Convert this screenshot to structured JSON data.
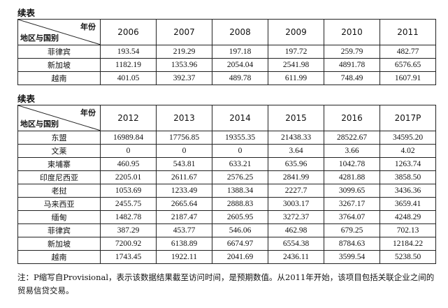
{
  "table1": {
    "caption": "续表",
    "corner_top": "年份",
    "corner_bottom": "地区与国别",
    "years": [
      "2006",
      "2007",
      "2008",
      "2009",
      "2010",
      "2011"
    ],
    "rows": [
      {
        "label": "菲律宾",
        "values": [
          "193.54",
          "219.29",
          "197.18",
          "197.72",
          "259.79",
          "482.77"
        ]
      },
      {
        "label": "新加坡",
        "values": [
          "1182.19",
          "1353.96",
          "2054.04",
          "2541.98",
          "4891.78",
          "6576.65"
        ]
      },
      {
        "label": "越南",
        "values": [
          "401.05",
          "392.37",
          "489.78",
          "611.99",
          "748.49",
          "1607.91"
        ]
      }
    ]
  },
  "table2": {
    "caption": "续表",
    "corner_top": "年份",
    "corner_bottom": "地区与国别",
    "years": [
      "2012",
      "2013",
      "2014",
      "2015",
      "2016",
      "2017P"
    ],
    "rows": [
      {
        "label": "东盟",
        "values": [
          "16989.84",
          "17756.85",
          "19355.35",
          "21438.33",
          "28522.67",
          "34595.20"
        ]
      },
      {
        "label": "文莱",
        "values": [
          "0",
          "0",
          "0",
          "3.64",
          "3.66",
          "4.02"
        ]
      },
      {
        "label": "柬埔寨",
        "values": [
          "460.95",
          "543.81",
          "633.21",
          "635.96",
          "1042.78",
          "1263.74"
        ]
      },
      {
        "label": "印度尼西亚",
        "values": [
          "2205.01",
          "2611.67",
          "2576.25",
          "2841.99",
          "4281.88",
          "3858.50"
        ]
      },
      {
        "label": "老挝",
        "values": [
          "1053.69",
          "1233.49",
          "1388.34",
          "2227.7",
          "3099.65",
          "3436.36"
        ]
      },
      {
        "label": "马来西亚",
        "values": [
          "2455.75",
          "2665.64",
          "2888.83",
          "3003.17",
          "3267.17",
          "3659.41"
        ]
      },
      {
        "label": "缅甸",
        "values": [
          "1482.78",
          "2187.47",
          "2605.95",
          "3272.37",
          "3764.07",
          "4248.29"
        ]
      },
      {
        "label": "菲律宾",
        "values": [
          "387.29",
          "453.77",
          "546.06",
          "462.98",
          "679.25",
          "702.13"
        ]
      },
      {
        "label": "新加坡",
        "values": [
          "7200.92",
          "6138.89",
          "6674.97",
          "6554.38",
          "8784.63",
          "12184.22"
        ]
      },
      {
        "label": "越南",
        "values": [
          "1743.45",
          "1922.11",
          "2041.69",
          "2436.11",
          "3599.54",
          "5238.50"
        ]
      }
    ]
  },
  "note": "注：P缩写自Provisional，表示该数据结果截至访问时间，是预期数值。从2011年开始，该项目包括关联企业之间的贸易信贷交易。"
}
